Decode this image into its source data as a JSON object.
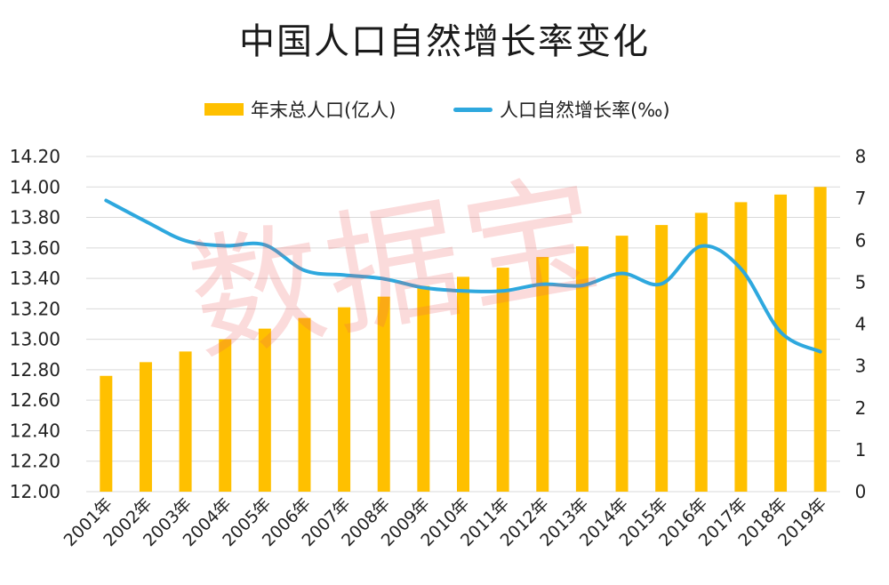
{
  "title": "中国人口自然增长率变化",
  "watermark_text": "数据宝",
  "legend": {
    "bar_label": "年末总人口(亿人)",
    "line_label": "人口自然增长率(‰)"
  },
  "colors": {
    "bar": "#FFC000",
    "line": "#2EA8DE",
    "grid": "#D9D9D9"
  },
  "chart_data": {
    "type": "bar+line",
    "title": "中国人口自然增长率变化",
    "categories": [
      "2001年",
      "2002年",
      "2003年",
      "2004年",
      "2005年",
      "2006年",
      "2007年",
      "2008年",
      "2009年",
      "2010年",
      "2011年",
      "2012年",
      "2013年",
      "2014年",
      "2015年",
      "2016年",
      "2017年",
      "2018年",
      "2019年"
    ],
    "series": [
      {
        "name": "年末总人口(亿人)",
        "type": "bar",
        "axis": "left",
        "values": [
          12.76,
          12.85,
          12.92,
          13.0,
          13.07,
          13.14,
          13.21,
          13.28,
          13.35,
          13.41,
          13.47,
          13.54,
          13.61,
          13.68,
          13.75,
          13.83,
          13.9,
          13.95,
          14.0
        ]
      },
      {
        "name": "人口自然增长率(‰)",
        "type": "line",
        "axis": "right",
        "values": [
          6.95,
          6.45,
          5.99,
          5.87,
          5.89,
          5.28,
          5.17,
          5.08,
          4.87,
          4.79,
          4.79,
          4.95,
          4.92,
          5.21,
          4.96,
          5.86,
          5.32,
          3.81,
          3.34
        ]
      }
    ],
    "y_left": {
      "min": 12.0,
      "max": 14.2,
      "step": 0.2,
      "ticks": [
        "12.00",
        "12.20",
        "12.40",
        "12.60",
        "12.80",
        "13.00",
        "13.20",
        "13.40",
        "13.60",
        "13.80",
        "14.00",
        "14.20"
      ]
    },
    "y_right": {
      "min": 0,
      "max": 8,
      "step": 1,
      "ticks": [
        "0",
        "1",
        "2",
        "3",
        "4",
        "5",
        "6",
        "7",
        "8"
      ]
    },
    "grid": true,
    "legend_position": "top-center"
  }
}
